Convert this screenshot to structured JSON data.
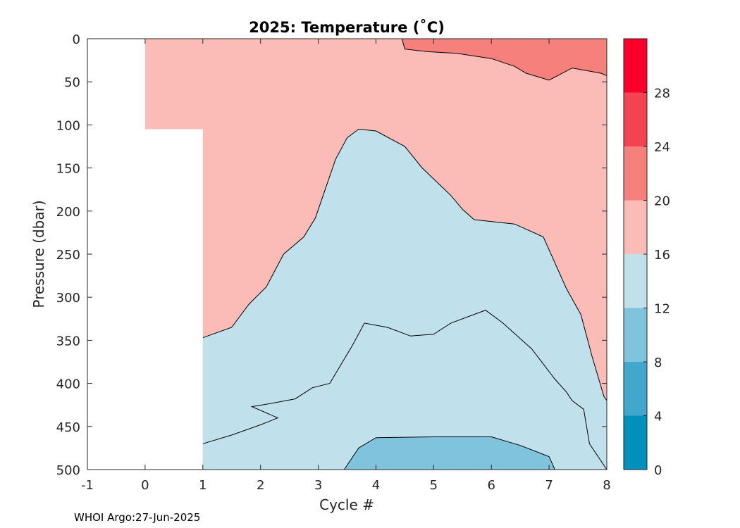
{
  "chart_data": {
    "type": "contour",
    "title": "2025:  Temperature (˚C)",
    "xlabel": "Cycle #",
    "ylabel": "Pressure (dbar)",
    "xlim": [
      -1,
      8
    ],
    "ylim": [
      0,
      500
    ],
    "y_reversed": true,
    "x_ticks": [
      "-1",
      "0",
      "1",
      "2",
      "3",
      "4",
      "5",
      "6",
      "7",
      "8"
    ],
    "y_ticks": [
      "0",
      "50",
      "100",
      "150",
      "200",
      "250",
      "300",
      "350",
      "400",
      "450",
      "500"
    ],
    "colorbar": {
      "range": [
        0,
        32
      ],
      "ticks": [
        "0",
        "4",
        "8",
        "12",
        "16",
        "20",
        "24",
        "28"
      ],
      "bands": [
        {
          "min": 0,
          "max": 4,
          "color": "#0090bb"
        },
        {
          "min": 4,
          "max": 8,
          "color": "#42a7cd"
        },
        {
          "min": 8,
          "max": 12,
          "color": "#80c3dc"
        },
        {
          "min": 12,
          "max": 16,
          "color": "#c0e0ec"
        },
        {
          "min": 16,
          "max": 20,
          "color": "#fbbcb7"
        },
        {
          "min": 20,
          "max": 24,
          "color": "#f6807c"
        },
        {
          "min": 24,
          "max": 28,
          "color": "#f34350"
        },
        {
          "min": 28,
          "max": 32,
          "color": "#f9002b"
        }
      ]
    },
    "data_start_depth": [
      {
        "cycle": 0,
        "pressure": 105
      },
      {
        "cycle": 1,
        "pressure": 0
      }
    ],
    "isotherms": [
      {
        "level": 20,
        "points": [
          [
            4.45,
            0
          ],
          [
            4.5,
            12
          ],
          [
            4.9,
            15
          ],
          [
            5.4,
            17
          ],
          [
            6.0,
            23
          ],
          [
            6.4,
            32
          ],
          [
            6.6,
            40
          ],
          [
            7.0,
            48
          ],
          [
            7.4,
            34
          ],
          [
            7.9,
            40
          ],
          [
            8.0,
            43
          ]
        ]
      },
      {
        "level": 16,
        "points": [
          [
            1.0,
            347
          ],
          [
            1.5,
            335
          ],
          [
            1.8,
            308
          ],
          [
            2.1,
            288
          ],
          [
            2.4,
            250
          ],
          [
            2.75,
            230
          ],
          [
            2.95,
            208
          ],
          [
            3.3,
            140
          ],
          [
            3.5,
            115
          ],
          [
            3.7,
            105
          ],
          [
            4.0,
            107
          ],
          [
            4.5,
            125
          ],
          [
            4.8,
            150
          ],
          [
            5.3,
            182
          ],
          [
            5.5,
            198
          ],
          [
            5.7,
            210
          ],
          [
            6.4,
            215
          ],
          [
            6.9,
            230
          ],
          [
            7.1,
            260
          ],
          [
            7.3,
            290
          ],
          [
            7.55,
            320
          ],
          [
            7.75,
            370
          ],
          [
            7.95,
            415
          ],
          [
            8.0,
            420
          ]
        ]
      },
      {
        "level": 12,
        "points": [
          [
            1.0,
            470
          ],
          [
            1.5,
            460
          ],
          [
            2.0,
            448
          ],
          [
            2.3,
            440
          ],
          [
            1.85,
            427
          ],
          [
            2.2,
            423
          ],
          [
            2.6,
            418
          ],
          [
            2.9,
            405
          ],
          [
            3.2,
            400
          ],
          [
            3.6,
            355
          ],
          [
            3.8,
            330
          ],
          [
            4.2,
            335
          ],
          [
            4.6,
            345
          ],
          [
            5.0,
            343
          ],
          [
            5.3,
            330
          ],
          [
            5.9,
            315
          ],
          [
            6.2,
            330
          ],
          [
            6.7,
            360
          ],
          [
            7.1,
            395
          ],
          [
            7.3,
            410
          ],
          [
            7.4,
            420
          ],
          [
            7.6,
            430
          ],
          [
            7.7,
            470
          ],
          [
            8.0,
            500
          ]
        ]
      },
      {
        "level": 8,
        "points": [
          [
            3.45,
            500
          ],
          [
            3.7,
            475
          ],
          [
            4.0,
            463
          ],
          [
            5.0,
            462
          ],
          [
            6.0,
            462
          ],
          [
            6.5,
            472
          ],
          [
            7.0,
            485
          ],
          [
            7.1,
            500
          ]
        ]
      }
    ]
  },
  "footer": {
    "credit": "WHOI Argo:27-Jun-2025"
  }
}
